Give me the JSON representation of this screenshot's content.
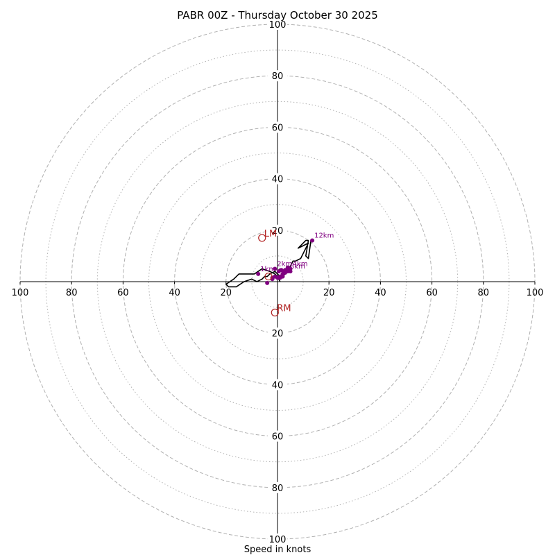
{
  "chart_data": {
    "type": "line",
    "title": "PABR 00Z - Thursday October 30 2025",
    "xlabel": "Speed in knots",
    "ylabel": "",
    "xlim": [
      -100,
      100
    ],
    "ylim": [
      -100,
      100
    ],
    "grid": true,
    "ring_values_major": [
      20,
      40,
      60,
      80,
      100
    ],
    "ring_values_minor": [
      10,
      30,
      50,
      70,
      90
    ],
    "tick_labels": [
      "100",
      "80",
      "60",
      "40",
      "20",
      "20",
      "40",
      "60",
      "80",
      "100"
    ],
    "series": [
      {
        "color": "#000000",
        "x": [
          1,
          0,
          -1,
          -3,
          -6,
          -9,
          -11,
          -15,
          -17,
          -20,
          -19,
          -16,
          -13,
          -10,
          -8,
          -6,
          -5,
          -4,
          -3,
          -1,
          0,
          1,
          2,
          3,
          1,
          0,
          2,
          3,
          4,
          5,
          6,
          7,
          9,
          12,
          10,
          8,
          11,
          12,
          11,
          12,
          13
        ],
        "y": [
          0,
          2,
          3,
          4,
          5,
          3,
          3,
          3,
          1,
          -1,
          -2,
          -2,
          0,
          1,
          0,
          1,
          2,
          2,
          3,
          4,
          3,
          2,
          2,
          3,
          5,
          4,
          4,
          5,
          5,
          6,
          8,
          8,
          9,
          15,
          14,
          13,
          16,
          16,
          10,
          9,
          16
        ]
      }
    ],
    "height_markers": [
      {
        "label": "1km",
        "x": -7.5,
        "y": 3
      },
      {
        "label": "",
        "x": -4,
        "y": -0.5
      },
      {
        "label": "",
        "x": -1,
        "y": 2
      },
      {
        "label": "2km",
        "x": -1,
        "y": 5
      },
      {
        "label": "",
        "x": 0.5,
        "y": 4
      },
      {
        "label": "",
        "x": 1.5,
        "y": 4.5
      },
      {
        "label": "",
        "x": 2.5,
        "y": 4
      },
      {
        "label": "",
        "x": 3,
        "y": 4.5
      },
      {
        "label": "",
        "x": 3,
        "y": 3.5
      },
      {
        "label": "",
        "x": 4,
        "y": 5.5
      },
      {
        "label": "4km",
        "x": 5,
        "y": 5
      },
      {
        "label": "",
        "x": 4,
        "y": 4.5
      },
      {
        "label": "",
        "x": 5,
        "y": 4
      },
      {
        "label": "8km",
        "x": 4,
        "y": 4
      },
      {
        "label": "",
        "x": 2,
        "y": 3
      },
      {
        "label": "",
        "x": 0,
        "y": 1.5
      },
      {
        "label": "",
        "x": 1,
        "y": 2
      },
      {
        "label": "",
        "x": 2,
        "y": 2
      },
      {
        "label": "",
        "x": 1,
        "y": 1.5
      },
      {
        "label": "",
        "x": -2,
        "y": 1
      },
      {
        "label": "",
        "x": -2,
        "y": 1.5
      },
      {
        "label": "12km",
        "x": 13.5,
        "y": 16
      }
    ],
    "storm_motion": [
      {
        "label": "LM",
        "x": -6,
        "y": 17
      },
      {
        "label": "RM",
        "x": -1,
        "y": -12
      },
      {
        "label": "",
        "x": -3.5,
        "y": 2
      }
    ],
    "colors": {
      "hodograph_line": "#000000",
      "height_marker": "#800080",
      "storm_motion": "#b22222",
      "ring_grid": "#b0b0b0",
      "axis": "#000000"
    }
  }
}
